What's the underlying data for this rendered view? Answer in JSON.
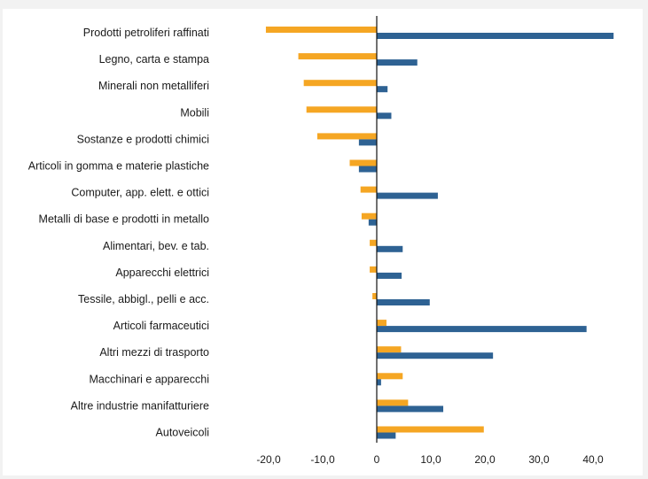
{
  "chart_data": {
    "type": "bar",
    "orientation": "horizontal",
    "categories": [
      "Prodotti petroliferi raffinati",
      "Legno, carta e stampa",
      "Minerali non metalliferi",
      "Mobili",
      "Sostanze e prodotti chimici",
      "Articoli in gomma e materie plastiche",
      "Computer, app. elett. e ottici",
      "Metalli di base e prodotti in metallo",
      "Alimentari, bev. e tab.",
      "Apparecchi elettrici",
      "Tessile, abbigl., pelli e acc.",
      "Articoli farmaceutici",
      "Altri mezzi di trasporto",
      "Macchinari e apparecchi",
      "Altre industrie manifatturiere",
      "Autoveicoli"
    ],
    "series": [
      {
        "color": "#f5a623",
        "values": [
          -20.5,
          -14.5,
          -13.5,
          -13.0,
          -11.0,
          -5.0,
          -3.0,
          -2.8,
          -1.3,
          -1.3,
          -0.8,
          1.8,
          4.5,
          4.8,
          5.8,
          19.8
        ]
      },
      {
        "color": "#2e6293",
        "values": [
          43.8,
          7.5,
          2.0,
          2.7,
          -3.3,
          -3.3,
          11.3,
          -1.5,
          4.8,
          4.6,
          9.8,
          38.8,
          21.5,
          0.8,
          12.3,
          3.5
        ]
      }
    ],
    "xlim": [
      -25,
      47
    ],
    "xticks": [
      -20,
      -10,
      0,
      10,
      20,
      30,
      40
    ],
    "xtick_labels": [
      "-20,0",
      "-10,0",
      "0",
      "10,0",
      "20,0",
      "30,0",
      "40,0"
    ],
    "xlabel": "",
    "ylabel": "",
    "title": "",
    "grid": false,
    "legend": "none"
  }
}
